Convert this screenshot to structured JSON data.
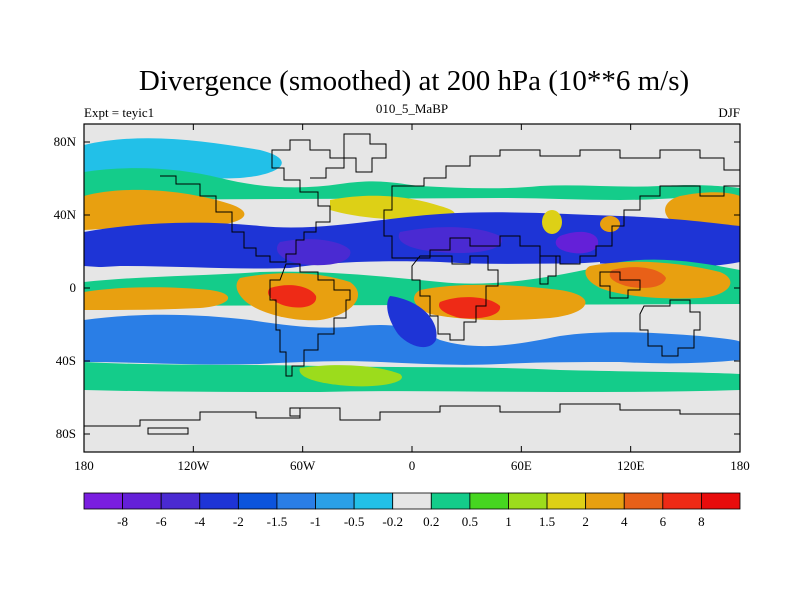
{
  "chart_data": {
    "type": "filled-contour-map",
    "title": "Divergence (smoothed) at 200 hPa (10**6 m/s)",
    "subtitle_left": "Expt = teyic1",
    "subtitle_center": "010_5_MaBP",
    "subtitle_right": "DJF",
    "x_ticks": [
      "180",
      "120W",
      "60W",
      "0",
      "60E",
      "120E",
      "180"
    ],
    "y_ticks": [
      "80N",
      "40N",
      "0",
      "40S",
      "80S"
    ],
    "xlim": [
      -180,
      180
    ],
    "ylim": [
      -90,
      90
    ],
    "levels": [
      "-8",
      "-6",
      "-4",
      "-2",
      "-1.5",
      "-1",
      "-0.5",
      "-0.2",
      "0.2",
      "0.5",
      "1",
      "1.5",
      "2",
      "4",
      "6",
      "8"
    ],
    "colorbar_colors": [
      "#7a1ee0",
      "#6420d8",
      "#4a2ad2",
      "#1e34d6",
      "#0c54dc",
      "#2a7ee6",
      "#2aa0e8",
      "#22c0e8",
      "#e6e6e6",
      "#14cc8a",
      "#46d620",
      "#9cdc1c",
      "#ddd016",
      "#e8a010",
      "#e86018",
      "#ee2a16",
      "#e80c0c"
    ]
  }
}
